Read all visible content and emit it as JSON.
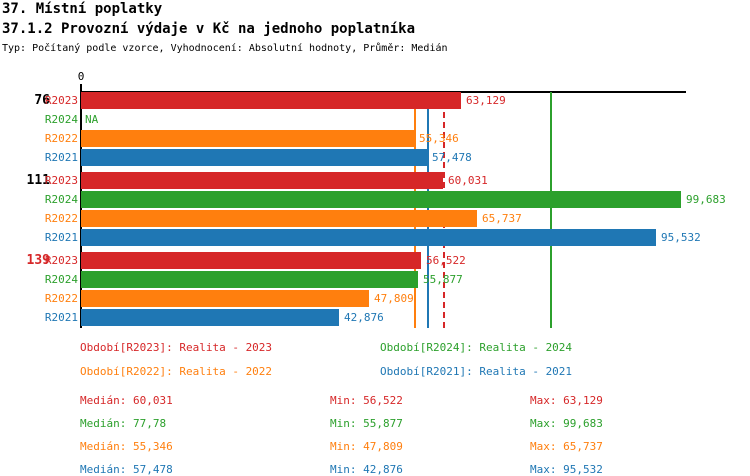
{
  "header": {
    "title1": "37. Místní poplatky",
    "title2": "37.1.2 Provozní výdaje v Kč na jednoho poplatníka",
    "subtitle": "Typ: Počítaný podle vzorce, Vyhodnocení: Absolutní hodnoty, Průměr: Medián"
  },
  "series_colors": {
    "R2023": "#d62728",
    "R2024": "#2ca02c",
    "R2022": "#ff7f0e",
    "R2021": "#1f77b4"
  },
  "chart_data": {
    "type": "bar",
    "orientation": "horizontal",
    "title": "37.1.2 Provozní výdaje v Kč na jednoho poplatníka",
    "xlabel": "",
    "ylabel": "",
    "x_axis": {
      "origin_tick_label": "0",
      "xlim": [
        0,
        100.4
      ],
      "grid": false
    },
    "series_order": [
      "R2023",
      "R2024",
      "R2022",
      "R2021"
    ],
    "groups": [
      {
        "label": "76",
        "label_color": "#000000",
        "bars": [
          {
            "series": "R2023",
            "value": 63.129,
            "display": "63,129"
          },
          {
            "series": "R2024",
            "value": null,
            "display": "NA"
          },
          {
            "series": "R2022",
            "value": 55.346,
            "display": "55,346"
          },
          {
            "series": "R2021",
            "value": 57.478,
            "display": "57,478"
          }
        ]
      },
      {
        "label": "111",
        "label_color": "#000000",
        "bars": [
          {
            "series": "R2023",
            "value": 60.031,
            "display": "60,031"
          },
          {
            "series": "R2024",
            "value": 99.683,
            "display": "99,683"
          },
          {
            "series": "R2022",
            "value": 65.737,
            "display": "65,737"
          },
          {
            "series": "R2021",
            "value": 95.532,
            "display": "95,532"
          }
        ]
      },
      {
        "label": "139",
        "label_color": "#d62728",
        "bars": [
          {
            "series": "R2023",
            "value": 56.522,
            "display": "56,522"
          },
          {
            "series": "R2024",
            "value": 55.877,
            "display": "55,877"
          },
          {
            "series": "R2022",
            "value": 47.809,
            "display": "47,809"
          },
          {
            "series": "R2021",
            "value": 42.876,
            "display": "42,876"
          }
        ]
      }
    ],
    "median_lines": [
      {
        "series": "R2023",
        "value": 60.031,
        "style": "dashed"
      },
      {
        "series": "R2024",
        "value": 77.78,
        "style": "solid"
      },
      {
        "series": "R2022",
        "value": 55.346,
        "style": "solid"
      },
      {
        "series": "R2021",
        "value": 57.478,
        "style": "solid"
      }
    ],
    "legend_position": "bottom"
  },
  "legend": {
    "items": [
      {
        "series": "R2023",
        "label": "Období[R2023]: Realita - 2023"
      },
      {
        "series": "R2024",
        "label": "Období[R2024]: Realita - 2024"
      },
      {
        "series": "R2022",
        "label": "Období[R2022]: Realita - 2022"
      },
      {
        "series": "R2021",
        "label": "Období[R2021]: Realita - 2021"
      }
    ]
  },
  "stats": {
    "median_label": "Medián:",
    "min_label": "Min:",
    "max_label": "Max:",
    "rows": [
      {
        "series": "R2023",
        "median": "60,031",
        "min": "56,522",
        "max": "63,129"
      },
      {
        "series": "R2024",
        "median": "77,78",
        "min": "55,877",
        "max": "99,683"
      },
      {
        "series": "R2022",
        "median": "55,346",
        "min": "47,809",
        "max": "65,737"
      },
      {
        "series": "R2021",
        "median": "57,478",
        "min": "42,876",
        "max": "95,532"
      }
    ]
  }
}
